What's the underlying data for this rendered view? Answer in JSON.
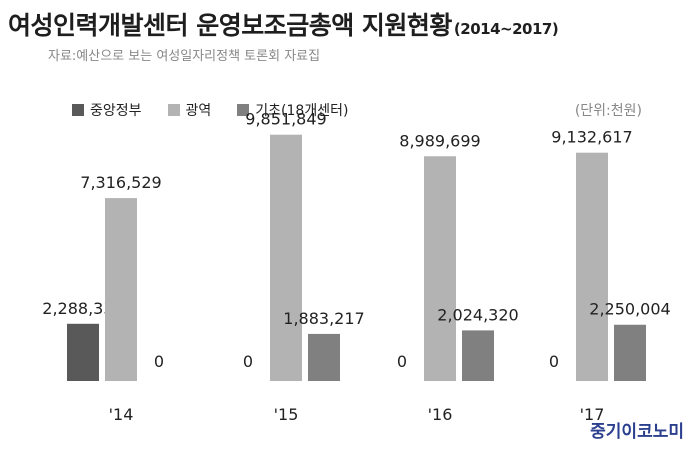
{
  "header": {
    "title": "여성인력개발센터 운영보조금총액 지원현황",
    "title_suffix": "(2014~2017)",
    "subtitle": "자료:예산으로 보는 여성일자리정책 토론회 자료집"
  },
  "unit": "(단위:천원)",
  "brand": "중기이코노미",
  "chart_data": {
    "type": "bar",
    "title": "여성인력개발센터 운영보조금총액 지원현황 (2014~2017)",
    "subtitle": "자료:예산으로 보는 여성일자리정책 토론회 자료집",
    "unit": "(단위:천원)",
    "categories": [
      "'14",
      "'15",
      "'16",
      "'17"
    ],
    "series": [
      {
        "name": "중앙정부",
        "color": "#595959",
        "values": [
          2288336,
          0,
          0,
          0
        ],
        "labels": [
          "2,288,336",
          "0",
          "0",
          "0"
        ]
      },
      {
        "name": "광역",
        "color": "#b3b3b3",
        "values": [
          7316529,
          9851849,
          8989699,
          9132617
        ],
        "labels": [
          "7,316,529",
          "9,851,849",
          "8,989,699",
          "9,132,617"
        ]
      },
      {
        "name": "기초(18개센터)",
        "color": "#808080",
        "values": [
          0,
          1883217,
          2024320,
          2250004
        ],
        "labels": [
          "0",
          "1,883,217",
          "2,024,320",
          "2,250,004"
        ]
      }
    ],
    "xlabel": "",
    "ylabel": "",
    "ylim": [
      0,
      10000000
    ],
    "grid": false,
    "legend": "top-left"
  }
}
